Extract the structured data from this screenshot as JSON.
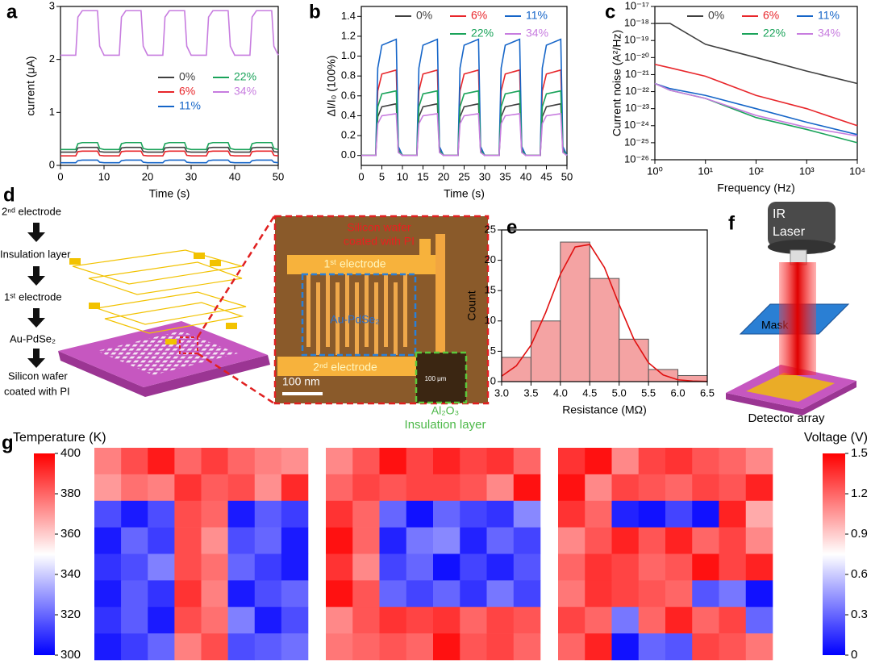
{
  "chart_data": [
    {
      "type": "line",
      "label": "a",
      "xlabel": "Time (s)",
      "ylabel": "current (μA)",
      "x": [
        0,
        3.5,
        4,
        5,
        8.5,
        9,
        10,
        13.5,
        14,
        15,
        18.5,
        19,
        20,
        23.5,
        24,
        25,
        28.5,
        29,
        30,
        33.5,
        34,
        35,
        38.5,
        39,
        40,
        43.5,
        44,
        45,
        48.5,
        49,
        50
      ],
      "xlim": [
        0,
        50
      ],
      "xticks": [
        0,
        10,
        20,
        30,
        40,
        50
      ],
      "ylim": [
        0,
        3
      ],
      "yticks": [
        0,
        1,
        2,
        3
      ],
      "series": [
        {
          "name": "0%",
          "color": "#404040",
          "values": [
            0.25,
            0.25,
            0.33,
            0.34,
            0.34,
            0.26,
            0.25,
            0.25,
            0.33,
            0.34,
            0.34,
            0.26,
            0.25,
            0.25,
            0.33,
            0.34,
            0.34,
            0.26,
            0.25,
            0.25,
            0.33,
            0.34,
            0.34,
            0.26,
            0.25,
            0.25,
            0.33,
            0.34,
            0.34,
            0.26,
            0.25
          ]
        },
        {
          "name": "6%",
          "color": "#e8262b",
          "values": [
            0.18,
            0.18,
            0.26,
            0.27,
            0.27,
            0.19,
            0.18,
            0.18,
            0.26,
            0.27,
            0.27,
            0.19,
            0.18,
            0.18,
            0.26,
            0.27,
            0.27,
            0.19,
            0.18,
            0.18,
            0.26,
            0.27,
            0.27,
            0.19,
            0.18,
            0.18,
            0.26,
            0.27,
            0.27,
            0.19,
            0.18
          ]
        },
        {
          "name": "11%",
          "color": "#1565c8",
          "values": [
            0.05,
            0.05,
            0.09,
            0.1,
            0.1,
            0.06,
            0.05,
            0.05,
            0.09,
            0.1,
            0.1,
            0.06,
            0.05,
            0.05,
            0.09,
            0.1,
            0.1,
            0.06,
            0.05,
            0.05,
            0.09,
            0.1,
            0.1,
            0.06,
            0.05,
            0.05,
            0.09,
            0.1,
            0.1,
            0.06,
            0.05
          ]
        },
        {
          "name": "22%",
          "color": "#1aa35a",
          "values": [
            0.3,
            0.3,
            0.41,
            0.43,
            0.43,
            0.32,
            0.3,
            0.3,
            0.41,
            0.43,
            0.43,
            0.32,
            0.3,
            0.3,
            0.41,
            0.43,
            0.43,
            0.32,
            0.3,
            0.3,
            0.41,
            0.43,
            0.43,
            0.32,
            0.3,
            0.3,
            0.41,
            0.43,
            0.43,
            0.32,
            0.3
          ]
        },
        {
          "name": "34%",
          "color": "#c77cdf",
          "values": [
            2.08,
            2.08,
            2.8,
            2.92,
            2.92,
            2.25,
            2.08,
            2.08,
            2.8,
            2.92,
            2.92,
            2.25,
            2.08,
            2.08,
            2.8,
            2.92,
            2.92,
            2.25,
            2.08,
            2.08,
            2.8,
            2.92,
            2.92,
            2.25,
            2.08,
            2.08,
            2.8,
            2.92,
            2.92,
            2.25,
            2.08
          ]
        }
      ]
    },
    {
      "type": "line",
      "label": "b",
      "xlabel": "Time (s)",
      "ylabel": "ΔI/I₀ (100%)",
      "x": [
        0,
        3.5,
        4,
        5,
        8.5,
        9,
        10,
        13.5,
        14,
        15,
        18.5,
        19,
        20,
        23.5,
        24,
        25,
        28.5,
        29,
        30,
        33.5,
        34,
        35,
        38.5,
        39,
        40,
        43.5,
        44,
        45,
        48.5,
        49,
        50
      ],
      "xlim": [
        0,
        50
      ],
      "xticks": [
        0,
        5,
        10,
        15,
        20,
        25,
        30,
        35,
        40,
        45,
        50
      ],
      "ylim": [
        -0.1,
        1.5
      ],
      "yticks": [
        {
          "value": 0,
          "label": "0.0"
        },
        0.2,
        0.4,
        0.6,
        0.8,
        {
          "value": 1,
          "label": "1.0"
        },
        1.2,
        1.4
      ],
      "series": [
        {
          "name": "0%",
          "color": "#404040",
          "values": [
            0,
            0,
            0.39,
            0.49,
            0.52,
            0.04,
            0,
            0,
            0.39,
            0.49,
            0.52,
            0.04,
            0,
            0,
            0.39,
            0.49,
            0.52,
            0.04,
            0,
            0,
            0.39,
            0.49,
            0.52,
            0.04,
            0,
            0,
            0.39,
            0.49,
            0.52,
            0.04,
            0
          ]
        },
        {
          "name": "6%",
          "color": "#e8262b",
          "values": [
            0,
            0,
            0.65,
            0.82,
            0.86,
            0.07,
            0,
            0,
            0.65,
            0.82,
            0.86,
            0.07,
            0,
            0,
            0.65,
            0.82,
            0.86,
            0.07,
            0,
            0,
            0.65,
            0.82,
            0.86,
            0.07,
            0,
            0,
            0.65,
            0.82,
            0.86,
            0.07,
            0
          ]
        },
        {
          "name": "11%",
          "color": "#1565c8",
          "values": [
            0,
            0,
            0.88,
            1.11,
            1.17,
            0.09,
            0,
            0,
            0.88,
            1.11,
            1.17,
            0.09,
            0,
            0,
            0.88,
            1.11,
            1.17,
            0.09,
            0,
            0,
            0.88,
            1.11,
            1.17,
            0.09,
            0,
            0,
            0.88,
            1.11,
            1.17,
            0.09,
            0
          ]
        },
        {
          "name": "22%",
          "color": "#1aa35a",
          "values": [
            0,
            0,
            0.49,
            0.62,
            0.65,
            0.05,
            0,
            0,
            0.49,
            0.62,
            0.65,
            0.05,
            0,
            0,
            0.49,
            0.62,
            0.65,
            0.05,
            0,
            0,
            0.49,
            0.62,
            0.65,
            0.05,
            0,
            0,
            0.49,
            0.62,
            0.65,
            0.05,
            0
          ]
        },
        {
          "name": "34%",
          "color": "#c77cdf",
          "values": [
            0,
            0,
            0.32,
            0.4,
            0.42,
            0.03,
            0,
            0,
            0.32,
            0.4,
            0.42,
            0.03,
            0,
            0,
            0.32,
            0.4,
            0.42,
            0.03,
            0,
            0,
            0.32,
            0.4,
            0.42,
            0.03,
            0,
            0,
            0.32,
            0.4,
            0.42,
            0.03,
            0
          ]
        }
      ]
    },
    {
      "type": "line",
      "label": "c",
      "xlabel": "Frequency (Hz)",
      "ylabel": "Current noise (A²/Hz)",
      "xscale": "log",
      "yscale": "log",
      "x": [
        1,
        2,
        10,
        100,
        1000,
        10000
      ],
      "xlim": [
        1,
        10000
      ],
      "xticks": [
        {
          "value": 1,
          "label": "10⁰"
        },
        {
          "value": 10,
          "label": "10¹"
        },
        {
          "value": 100,
          "label": "10²"
        },
        {
          "value": 1000,
          "label": "10³"
        },
        {
          "value": 10000,
          "label": "10⁴"
        }
      ],
      "ylim": [
        1e-26,
        1e-17
      ],
      "yticks": [
        {
          "value": 1e-26,
          "label": "10⁻²⁶"
        },
        {
          "value": 1e-25,
          "label": "10⁻²⁵"
        },
        {
          "value": 1e-24,
          "label": "10⁻²⁴"
        },
        {
          "value": 1e-23,
          "label": "10⁻²³"
        },
        {
          "value": 1e-22,
          "label": "10⁻²²"
        },
        {
          "value": 1e-21,
          "label": "10⁻²¹"
        },
        {
          "value": 1e-20,
          "label": "10⁻²⁰"
        },
        {
          "value": 1e-19,
          "label": "10⁻¹⁹"
        },
        {
          "value": 1e-18,
          "label": "10⁻¹⁸"
        },
        {
          "value": 1e-17,
          "label": "10⁻¹⁷"
        }
      ],
      "series": [
        {
          "name": "0%",
          "color": "#404040",
          "values": [
            1e-18,
            1e-18,
            6e-20,
            1e-20,
            1.6e-21,
            3e-22
          ]
        },
        {
          "name": "6%",
          "color": "#e8262b",
          "values": [
            4e-21,
            2.5e-21,
            8e-22,
            6e-23,
            1e-23,
            1e-24
          ]
        },
        {
          "name": "11%",
          "color": "#1565c8",
          "values": [
            3e-22,
            1.5e-22,
            6e-23,
            1e-23,
            1.6e-24,
            3e-25
          ]
        },
        {
          "name": "22%",
          "color": "#1aa35a",
          "values": [
            3e-22,
            1.2e-22,
            4e-23,
            3e-24,
            6e-25,
            1e-25
          ]
        },
        {
          "name": "34%",
          "color": "#c77cdf",
          "values": [
            3e-22,
            1.2e-22,
            4e-23,
            4e-24,
            8e-25,
            2.5e-25
          ]
        }
      ]
    },
    {
      "type": "histogram",
      "label": "e",
      "xlabel": "Resistance (MΩ)",
      "ylabel": "Count",
      "bins": [
        3,
        3.5,
        4,
        4.5,
        5,
        5.5,
        6,
        6.5
      ],
      "counts": [
        4,
        10,
        23,
        17,
        7,
        2,
        1
      ],
      "color": "#f4a3a3",
      "edge": "#555555",
      "xlim": [
        3,
        6.5
      ],
      "xticks": [
        {
          "value": 3,
          "label": "3.0"
        },
        3.5,
        {
          "value": 4,
          "label": "4.0"
        },
        4.5,
        {
          "value": 5,
          "label": "5.0"
        },
        5.5,
        {
          "value": 6,
          "label": "6.0"
        },
        6.5
      ],
      "ylim": [
        0,
        25
      ],
      "yticks": [
        0,
        5,
        10,
        15,
        20,
        25
      ],
      "fit": {
        "color": "#e01010",
        "x": [
          3,
          3.25,
          3.5,
          3.75,
          4,
          4.25,
          4.5,
          4.75,
          5,
          5.25,
          5.5,
          5.75,
          6,
          6.25,
          6.5
        ],
        "values": [
          0.9,
          2.6,
          6,
          11.4,
          17.7,
          22.2,
          22.6,
          18.8,
          12.7,
          7,
          3.1,
          1.1,
          0.3,
          0.1,
          0.02
        ]
      }
    },
    {
      "type": "heatmap",
      "label": "g",
      "zlim": [
        300,
        400
      ],
      "colorbar": {
        "label": "Temperature (K)",
        "ticks": [
          300,
          320,
          340,
          360,
          380,
          400
        ]
      },
      "values": [
        [
          375,
          385,
          395,
          380,
          388,
          380,
          375,
          372
        ],
        [
          370,
          378,
          375,
          390,
          382,
          385,
          372,
          392
        ],
        [
          315,
          305,
          315,
          385,
          380,
          305,
          318,
          312
        ],
        [
          305,
          320,
          312,
          385,
          372,
          315,
          320,
          305
        ],
        [
          310,
          315,
          325,
          385,
          378,
          320,
          312,
          305
        ],
        [
          305,
          318,
          310,
          390,
          375,
          305,
          315,
          320
        ],
        [
          310,
          318,
          305,
          385,
          378,
          325,
          305,
          315
        ],
        [
          305,
          312,
          320,
          375,
          385,
          315,
          318,
          322
        ]
      ]
    },
    {
      "type": "heatmap",
      "zlim": [
        0,
        1.5
      ],
      "values": [
        [
          1.1,
          1.25,
          1.45,
          1.3,
          1.4,
          1.3,
          1.35,
          1.2
        ],
        [
          1.2,
          1.3,
          1.25,
          1.3,
          1.3,
          1.25,
          1.1,
          1.45
        ],
        [
          1.35,
          1.2,
          0.3,
          0.05,
          0.3,
          0.2,
          0.15,
          0.4
        ],
        [
          1.45,
          1.2,
          0.1,
          0.35,
          0.4,
          0.1,
          0.3,
          0.2
        ],
        [
          1.35,
          1.1,
          0.2,
          0.3,
          0.05,
          0.2,
          0.1,
          0.25
        ],
        [
          1.45,
          1.25,
          0.3,
          0.2,
          0.3,
          0.15,
          0.35,
          0.2
        ],
        [
          1.1,
          1.25,
          1.35,
          1.3,
          1.35,
          1.2,
          1.3,
          1.25
        ],
        [
          1.15,
          1.2,
          1.25,
          1.2,
          1.45,
          1.25,
          1.3,
          1.2
        ]
      ]
    },
    {
      "type": "heatmap",
      "zlim": [
        0,
        1.5
      ],
      "colorbar": {
        "label": "Voltage (V)",
        "ticks": [
          0,
          0.3,
          0.6,
          0.9,
          1.2,
          1.5
        ]
      },
      "values": [
        [
          1.35,
          1.45,
          1.1,
          1.3,
          1.35,
          1.25,
          1.2,
          1.1
        ],
        [
          1.45,
          1.1,
          1.3,
          1.25,
          1.2,
          1.3,
          1.25,
          1.4
        ],
        [
          1.35,
          1.2,
          0.1,
          0.05,
          0.2,
          0.05,
          1.4,
          1
        ],
        [
          1.1,
          1.25,
          1.4,
          1.25,
          1.4,
          1.2,
          1.3,
          1.1
        ],
        [
          1.2,
          1.35,
          1.3,
          1.2,
          1.25,
          1.45,
          1.3,
          1.4
        ],
        [
          1.15,
          1.35,
          1.3,
          1.25,
          1.2,
          0.25,
          0.35,
          0.05
        ],
        [
          1.3,
          1.2,
          0.35,
          1.2,
          1.4,
          1.2,
          1.3,
          0.3
        ],
        [
          1.2,
          1.4,
          0.05,
          0.3,
          0.25,
          1.3,
          1.25,
          1.15
        ]
      ]
    }
  ],
  "diagrams": {
    "d": {
      "label": "d",
      "steps": [
        "2ⁿᵈ electrode",
        "Insulation layer",
        "1ˢᵗ electrode",
        "Au-PdSe₂"
      ],
      "base": [
        "Silicon wafer",
        "coated with PI"
      ],
      "micrograph": {
        "top": [
          "Silicon wafer",
          "coated with PI"
        ],
        "electrode1": "1ˢᵗ electrode",
        "active": "Au-PdSe₂",
        "electrode2": "2ⁿᵈ electrode",
        "scale": "100 nm",
        "inset_scale": "100 μm",
        "oxide": "Al₂O₃",
        "insulation": "Insulation layer"
      }
    },
    "f": {
      "label": "f",
      "laser": [
        "IR",
        "Laser"
      ],
      "mask": "Mask",
      "array": "Detector array"
    }
  }
}
